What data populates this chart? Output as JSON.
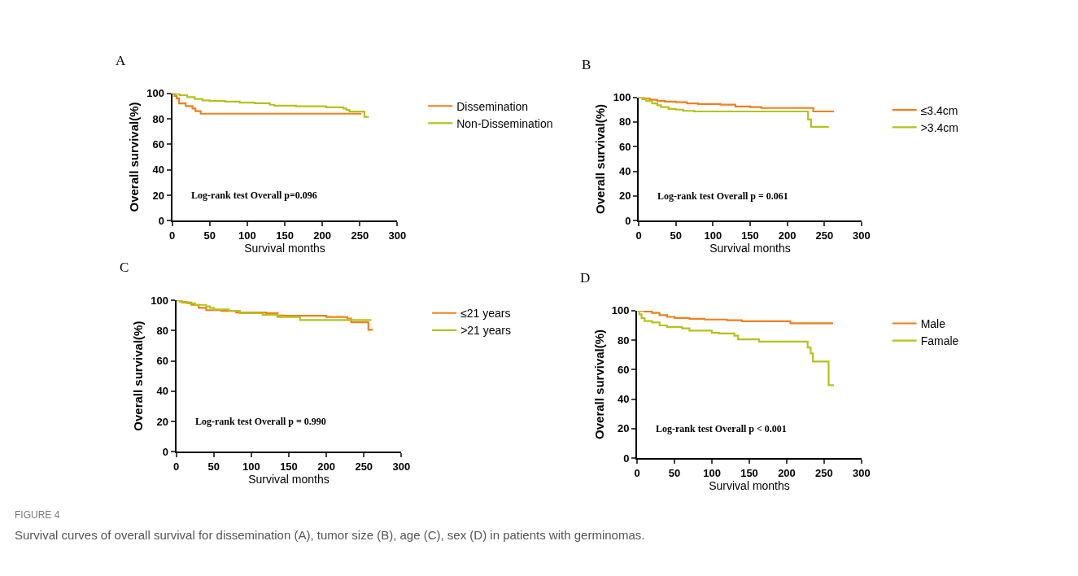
{
  "chart_data": [
    {
      "type": "step",
      "title": "A",
      "xlabel": "Survival months",
      "ylabel": "Overall survival(%)",
      "xlim": [
        0,
        300
      ],
      "ylim": [
        0,
        100
      ],
      "xticks": [
        0,
        50,
        100,
        150,
        200,
        250,
        300
      ],
      "yticks": [
        0,
        20,
        40,
        60,
        80,
        100
      ],
      "legend": "right",
      "marker": "none",
      "line_style": "solid",
      "annotations": [
        "Log-rank test Overall p=0.096"
      ],
      "series": [
        {
          "name": "Dissemination",
          "color": "#f07f1d",
          "x": [
            0,
            3,
            6,
            9,
            18,
            27,
            31,
            38,
            252
          ],
          "values": [
            100,
            98,
            96,
            92,
            90,
            88,
            86,
            84,
            84
          ]
        },
        {
          "name": "Non-Dissemination",
          "color": "#b5c21a",
          "x": [
            0,
            5,
            10,
            20,
            30,
            40,
            50,
            70,
            90,
            110,
            130,
            136,
            165,
            205,
            228,
            232,
            236,
            256,
            262
          ],
          "values": [
            100,
            99.5,
            98.5,
            97,
            95.5,
            94.5,
            94,
            93.5,
            92.7,
            92.2,
            91,
            90.3,
            89.8,
            89,
            88,
            87,
            85.7,
            81.5,
            81.5
          ]
        }
      ]
    },
    {
      "type": "step",
      "title": "B",
      "xlabel": "Survival months",
      "ylabel": "Overall survival(%)",
      "xlim": [
        0,
        300
      ],
      "ylim": [
        0,
        100
      ],
      "xticks": [
        0,
        50,
        100,
        150,
        200,
        250,
        300
      ],
      "yticks": [
        0,
        20,
        40,
        60,
        80,
        100
      ],
      "legend": "right",
      "marker": "none",
      "line_style": "solid",
      "annotations": [
        "Log-rank test Overall p = 0.061"
      ],
      "series": [
        {
          "name": "≤3.4cm",
          "color": "#f07f1d",
          "x": [
            0,
            8,
            15,
            25,
            35,
            50,
            65,
            80,
            110,
            130,
            150,
            165,
            235,
            263
          ],
          "values": [
            100,
            99,
            98,
            97,
            96.5,
            96,
            95,
            94.5,
            94,
            92.5,
            92,
            91.3,
            88.5,
            88.5
          ]
        },
        {
          "name": ">3.4cm",
          "color": "#b5c21a",
          "x": [
            0,
            5,
            10,
            18,
            25,
            30,
            40,
            50,
            60,
            75,
            228,
            232,
            256
          ],
          "values": [
            100,
            98.5,
            97,
            95,
            93.5,
            92,
            90.5,
            90,
            89,
            88.5,
            82,
            76,
            76
          ]
        }
      ]
    },
    {
      "type": "step",
      "title": "C",
      "xlabel": "Survival months",
      "ylabel": "Overall survival(%)",
      "xlim": [
        0,
        300
      ],
      "ylim": [
        0,
        100
      ],
      "xticks": [
        0,
        50,
        100,
        150,
        200,
        250,
        300
      ],
      "yticks": [
        0,
        20,
        40,
        60,
        80,
        100
      ],
      "legend": "right",
      "marker": "none",
      "line_style": "solid",
      "annotations": [
        "Log-rank test Overall p = 0.990"
      ],
      "series": [
        {
          "name": "≤21 years",
          "color": "#f07f1d",
          "x": [
            0,
            8,
            20,
            30,
            40,
            60,
            80,
            120,
            135,
            145,
            200,
            228,
            233,
            256,
            262
          ],
          "values": [
            100,
            98.5,
            97,
            95,
            93.5,
            93,
            92,
            91.5,
            90,
            89.8,
            89,
            88,
            85.5,
            80.5,
            80.5
          ]
        },
        {
          "name": ">21 years",
          "color": "#b5c21a",
          "x": [
            0,
            5,
            15,
            25,
            40,
            45,
            50,
            70,
            85,
            115,
            135,
            165,
            260
          ],
          "values": [
            100,
            99,
            98,
            97,
            96,
            95,
            94,
            93,
            91.5,
            90.5,
            89,
            87,
            87
          ]
        }
      ]
    },
    {
      "type": "step",
      "title": "D",
      "xlabel": "Survival months",
      "ylabel": "Overall survival(%)",
      "xlim": [
        0,
        300
      ],
      "ylim": [
        0,
        100
      ],
      "xticks": [
        0,
        50,
        100,
        150,
        200,
        250,
        300
      ],
      "yticks": [
        0,
        20,
        40,
        60,
        80,
        100
      ],
      "legend": "right",
      "marker": "none",
      "line_style": "solid",
      "annotations": [
        "Log-rank test Overall p < 0.001",
        "FIGURE 4",
        "Survival curves of overall survival for dissemination (A), tumor size (B), age (C), sex (D) in patients with germinomas."
      ],
      "series": [
        {
          "name": "Male",
          "color": "#f07f1d",
          "x": [
            0,
            10,
            20,
            30,
            40,
            50,
            70,
            90,
            120,
            140,
            205,
            262
          ],
          "values": [
            100,
            99.5,
            98.5,
            97,
            95.8,
            95,
            94.5,
            94,
            93.5,
            92.8,
            91.5,
            91.5
          ]
        },
        {
          "name": "Famale",
          "color": "#b5c21a",
          "x": [
            0,
            3,
            6,
            10,
            20,
            30,
            40,
            60,
            70,
            100,
            110,
            130,
            135,
            163,
            228,
            232,
            235,
            256,
            263
          ],
          "values": [
            100,
            97.5,
            95,
            93,
            92,
            90,
            89,
            88,
            86.5,
            85,
            84.5,
            83,
            80.5,
            79,
            75,
            71,
            65.5,
            49.5,
            49.5
          ]
        }
      ]
    }
  ]
}
